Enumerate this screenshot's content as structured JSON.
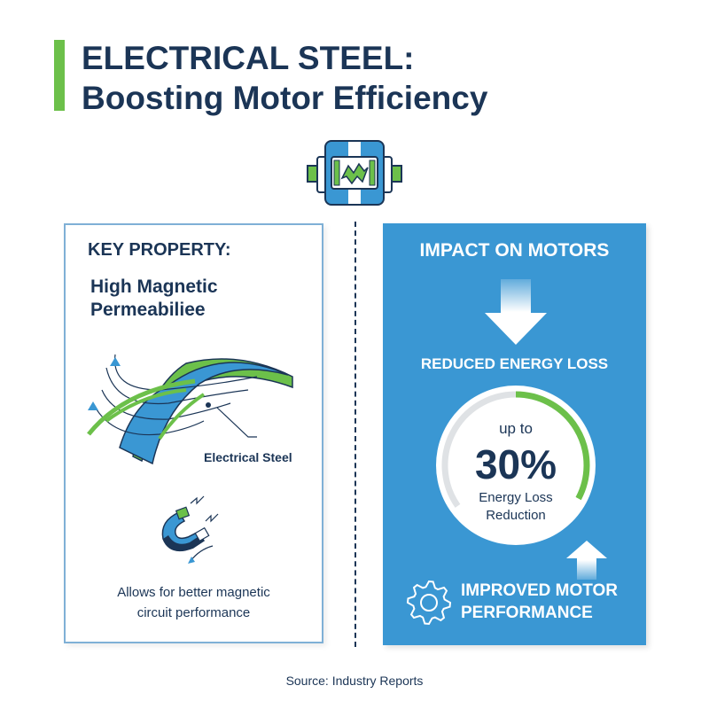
{
  "header": {
    "title_line1": "ELECTRICAL STEEL:",
    "title_line2": "Boosting Motor Efficiency",
    "icon": "electric-motor-icon"
  },
  "left_panel": {
    "heading": "KEY PROPERTY:",
    "property_line1": "High Magnetic",
    "property_line2": "Permeabiliee",
    "steel_label": "Electrical Steel",
    "description_line1": "Allows for better magnetic",
    "description_line2": "circuit performance",
    "icons": [
      "steel-sheet-icon",
      "magnet-icon"
    ]
  },
  "right_panel": {
    "heading": "IMPACT ON MOTORS",
    "subheading": "REDUCED ENERGY LOSS",
    "gauge": {
      "prefix": "up to",
      "value_label": "30%",
      "value_percent": 30,
      "caption_line1": "Energy Loss",
      "caption_line2": "Reduction"
    },
    "footer_line1": "IMPROVED MOTOR",
    "footer_line2": "PERFORMANCE",
    "icons": [
      "arrow-down-icon",
      "arrow-up-icon",
      "gear-icon"
    ]
  },
  "source": "Source: Industry Reports",
  "colors": {
    "navy": "#1b3556",
    "blue": "#3a97d3",
    "green": "#6cc04a"
  }
}
